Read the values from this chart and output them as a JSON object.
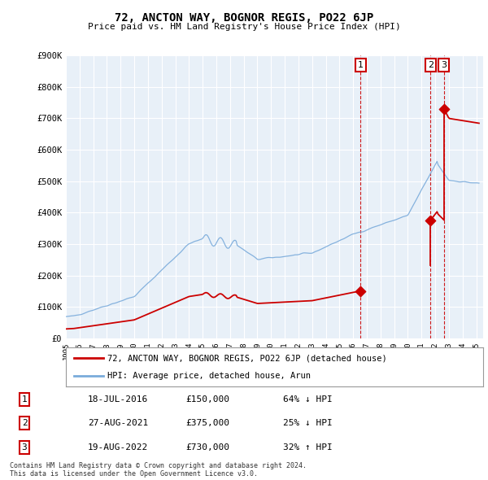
{
  "title": "72, ANCTON WAY, BOGNOR REGIS, PO22 6JP",
  "subtitle": "Price paid vs. HM Land Registry's House Price Index (HPI)",
  "hpi_color": "#7aabdb",
  "price_color": "#cc0000",
  "background_color": "#ffffff",
  "grid_color": "#ccddee",
  "ylim": [
    0,
    900000
  ],
  "yticks": [
    0,
    100000,
    200000,
    300000,
    400000,
    500000,
    600000,
    700000,
    800000,
    900000
  ],
  "ytick_labels": [
    "£0",
    "£100K",
    "£200K",
    "£300K",
    "£400K",
    "£500K",
    "£600K",
    "£700K",
    "£800K",
    "£900K"
  ],
  "transactions": [
    {
      "num": 1,
      "date": "18-JUL-2016",
      "price": 150000,
      "pct": "64%",
      "dir": "↓",
      "x_year": 2016.54
    },
    {
      "num": 2,
      "date": "27-AUG-2021",
      "price": 375000,
      "pct": "25%",
      "dir": "↓",
      "x_year": 2021.65
    },
    {
      "num": 3,
      "date": "19-AUG-2022",
      "price": 730000,
      "pct": "32%",
      "dir": "↑",
      "x_year": 2022.63
    }
  ],
  "legend_label_red": "72, ANCTON WAY, BOGNOR REGIS, PO22 6JP (detached house)",
  "legend_label_blue": "HPI: Average price, detached house, Arun",
  "footer": "Contains HM Land Registry data © Crown copyright and database right 2024.\nThis data is licensed under the Open Government Licence v3.0.",
  "xlim": [
    1995.0,
    2025.5
  ],
  "xticks": [
    1995,
    1996,
    1997,
    1998,
    1999,
    2000,
    2001,
    2002,
    2003,
    2004,
    2005,
    2006,
    2007,
    2008,
    2009,
    2010,
    2011,
    2012,
    2013,
    2014,
    2015,
    2016,
    2017,
    2018,
    2019,
    2020,
    2021,
    2022,
    2023,
    2024,
    2025
  ]
}
